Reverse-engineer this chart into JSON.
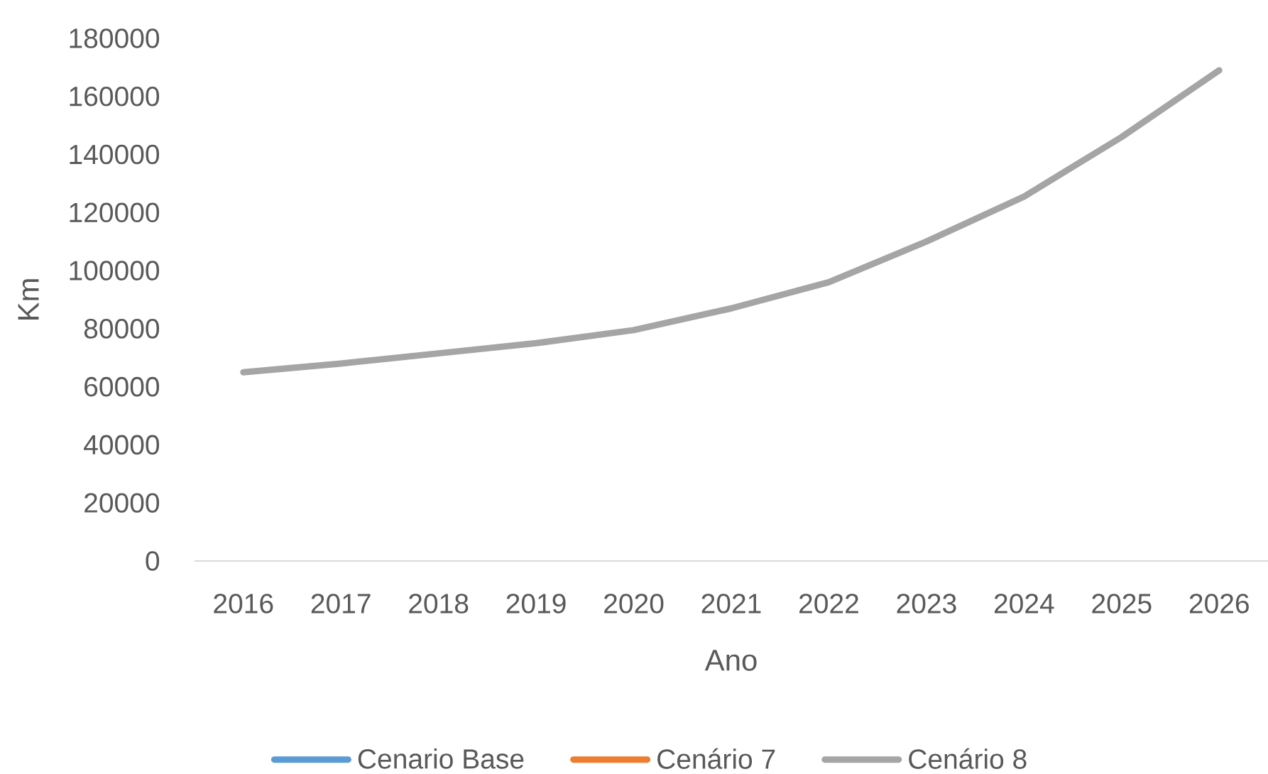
{
  "chart_data": {
    "type": "line",
    "xlabel": "Ano",
    "ylabel": "Km",
    "categories": [
      "2016",
      "2017",
      "2018",
      "2019",
      "2020",
      "2021",
      "2022",
      "2023",
      "2024",
      "2025",
      "2026"
    ],
    "series": [
      {
        "name": "Cenario Base",
        "color": "#5b9bd5",
        "values": [
          null,
          null,
          null,
          null,
          null,
          null,
          null,
          null,
          null,
          null,
          null
        ]
      },
      {
        "name": "Cenário 7",
        "color": "#ed7d31",
        "values": [
          null,
          null,
          null,
          null,
          null,
          null,
          null,
          null,
          null,
          null,
          null
        ]
      },
      {
        "name": "Cenário 8",
        "color": "#a5a5a5",
        "values": [
          65000,
          68000,
          71500,
          75000,
          79500,
          87000,
          96000,
          110000,
          125500,
          146000,
          169000
        ]
      }
    ],
    "ylim": [
      0,
      180000
    ],
    "yticks": [
      0,
      20000,
      40000,
      60000,
      80000,
      100000,
      120000,
      140000,
      160000,
      180000
    ],
    "grid": false,
    "legend": "bottom",
    "marker": "none",
    "line_style": "solid"
  }
}
